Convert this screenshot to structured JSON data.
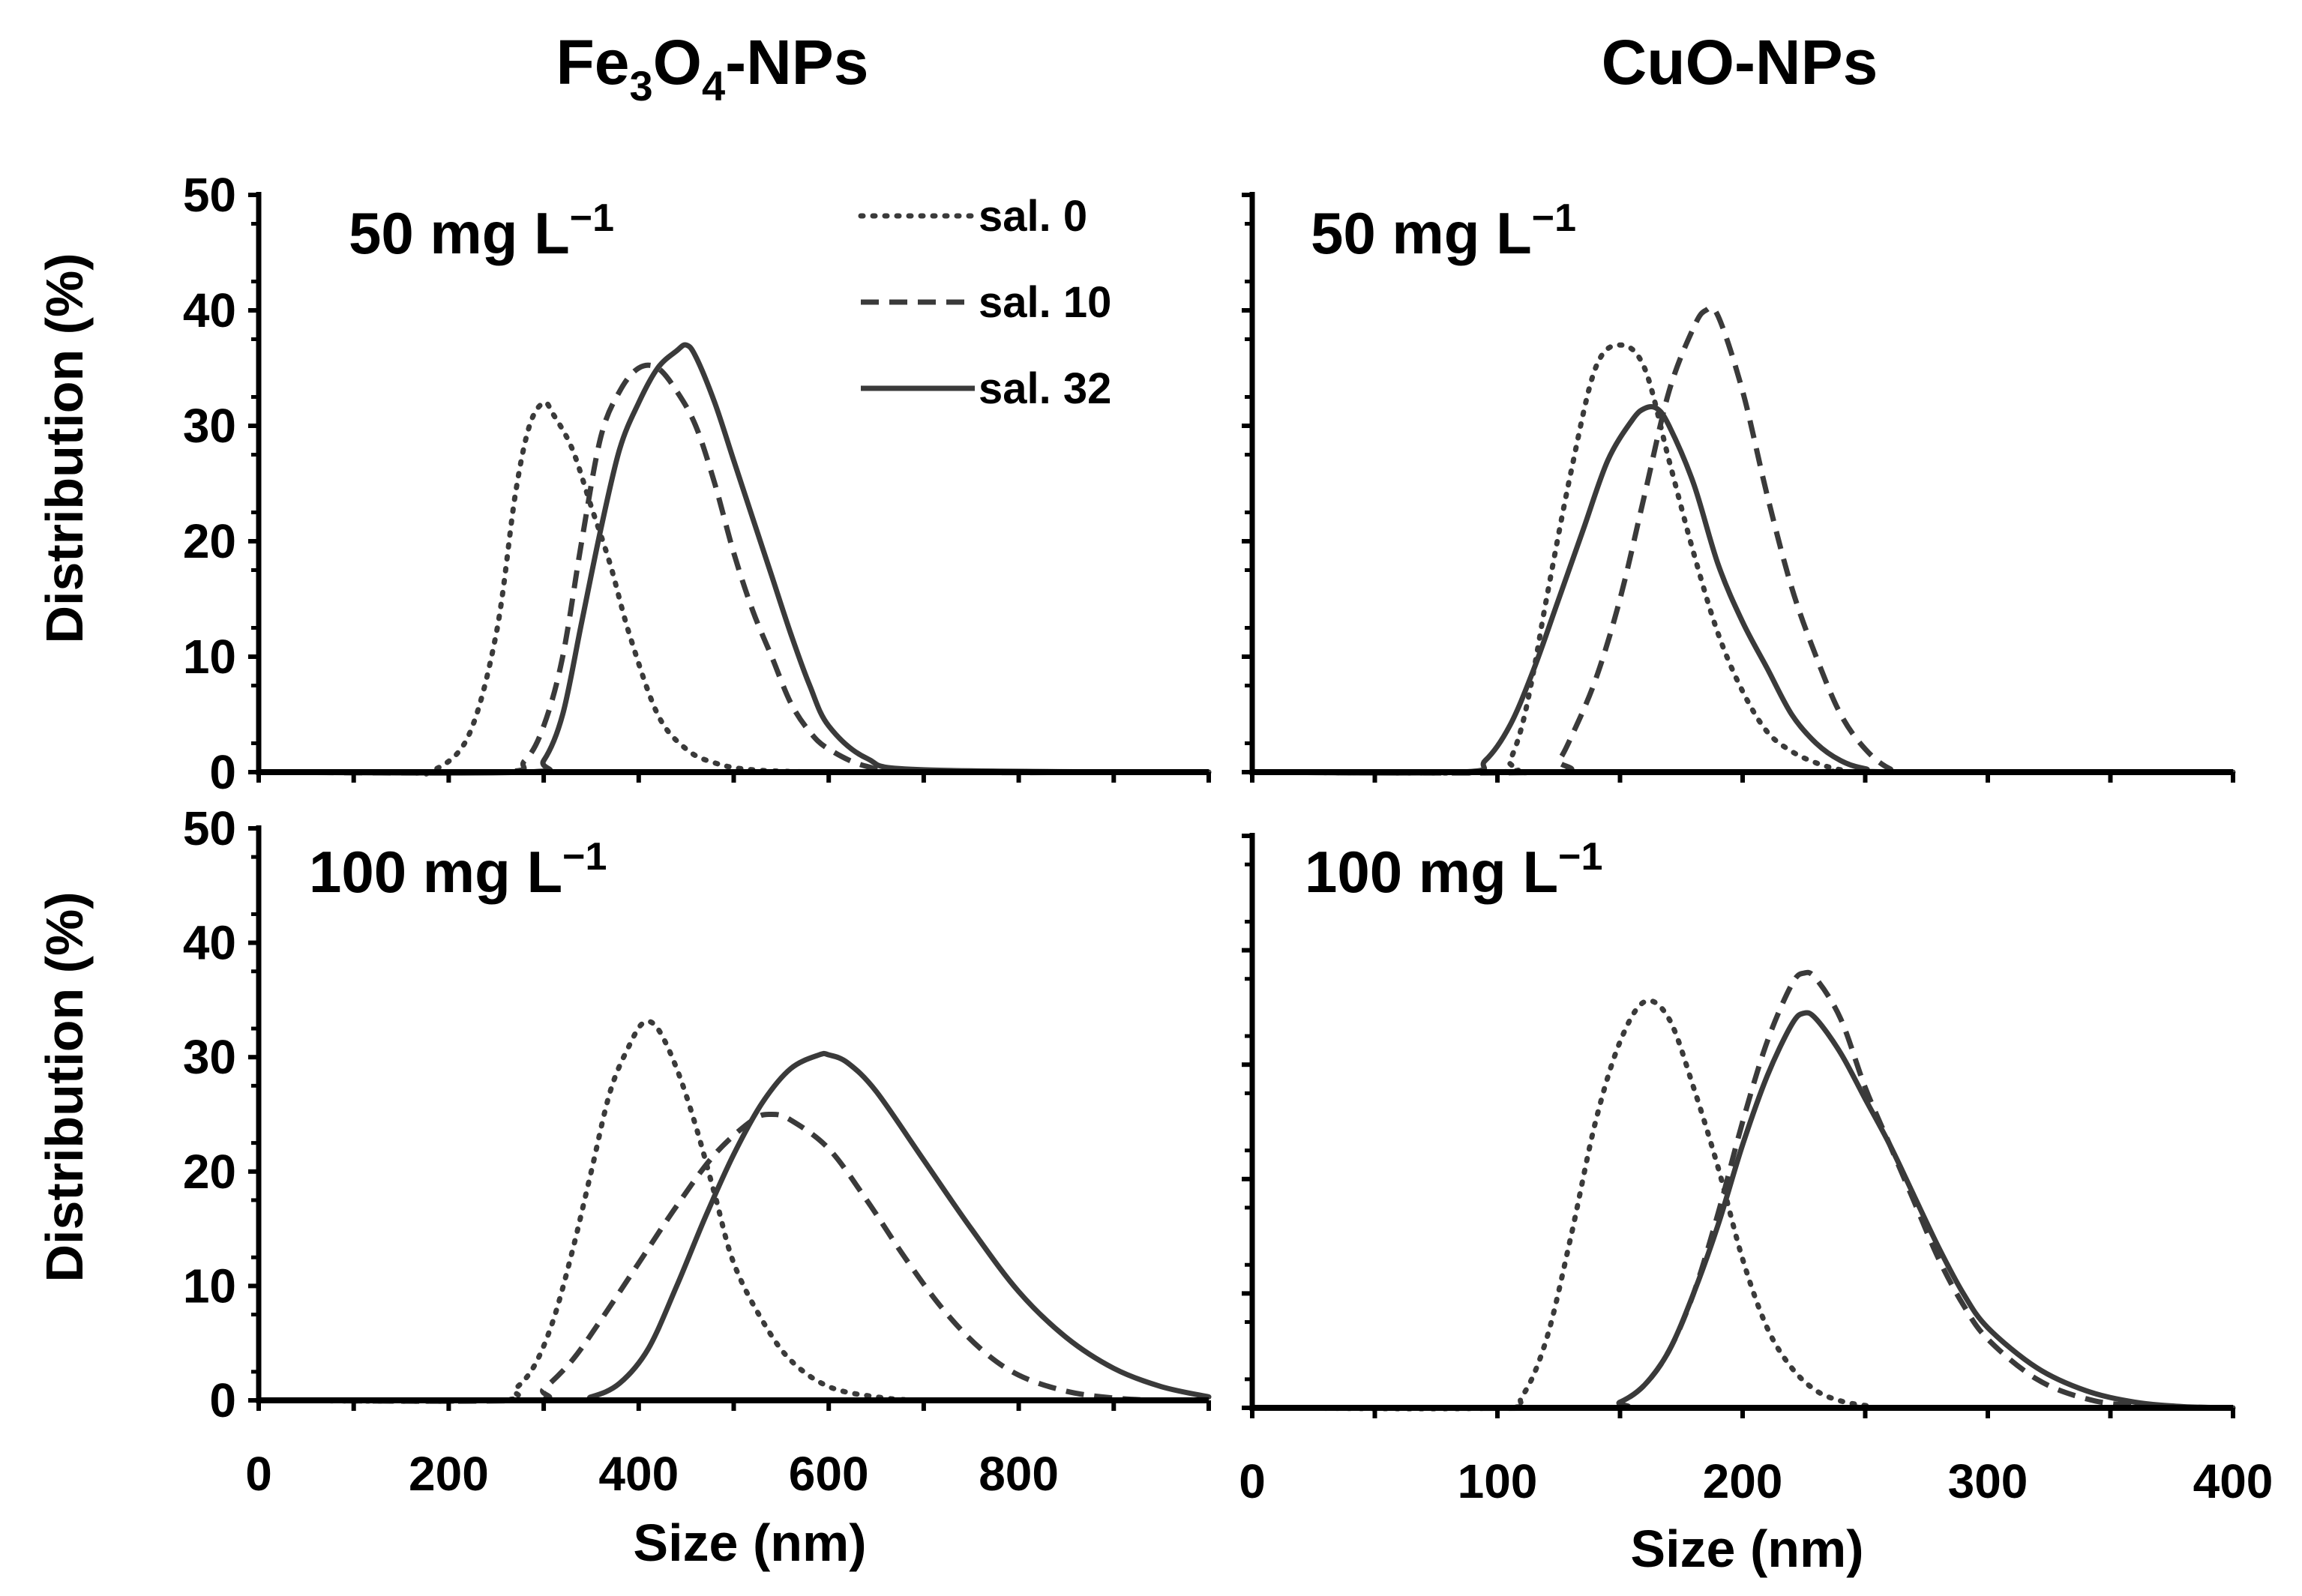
{
  "figure": {
    "col_titles": [
      {
        "base": "Fe",
        "sub1": "3",
        "mid": "O",
        "sub2": "4",
        "tail": "-NPs"
      },
      {
        "base": "CuO-NPs",
        "sub1": "",
        "mid": "",
        "sub2": "",
        "tail": ""
      }
    ],
    "ylabel": "Distribution (%)",
    "xlabel": "Size (nm)",
    "legend": [
      "sal. 0",
      "sal. 10",
      "sal. 32"
    ],
    "colors": {
      "line": "#3a3a3a",
      "axis": "#000000",
      "text": "#000000"
    }
  },
  "chart_data": [
    {
      "type": "line",
      "panel": "Fe3O4-NPs 50 mg L-1",
      "annotation": {
        "text": "50 mg L",
        "sup": "−1"
      },
      "xlim": [
        0,
        1000
      ],
      "ylim": [
        0,
        50
      ],
      "xticks": [
        0,
        200,
        400,
        600,
        800
      ],
      "yticks": [
        0,
        10,
        20,
        30,
        40,
        50
      ],
      "series": [
        {
          "name": "sal. 0",
          "style": "dotted",
          "x": [
            0,
            150,
            180,
            220,
            250,
            270,
            285,
            300,
            310,
            330,
            350,
            370,
            390,
            420,
            450,
            480,
            520,
            600,
            700,
            1000
          ],
          "y": [
            0,
            0,
            0,
            3,
            12,
            24,
            30,
            32,
            31,
            28,
            23,
            18,
            12,
            5,
            2,
            0.8,
            0.2,
            0,
            0,
            0
          ]
        },
        {
          "name": "sal. 10",
          "style": "dashed",
          "x": [
            0,
            250,
            280,
            300,
            320,
            340,
            360,
            380,
            400,
            420,
            440,
            460,
            480,
            500,
            520,
            540,
            560,
            580,
            600,
            640,
            700,
            1000
          ],
          "y": [
            0,
            0,
            1,
            4,
            10,
            20,
            29,
            33,
            35,
            35,
            33,
            30,
            25,
            19,
            14,
            10,
            6,
            3.5,
            2,
            0.5,
            0,
            0
          ]
        },
        {
          "name": "sal. 32",
          "style": "solid",
          "x": [
            0,
            280,
            300,
            320,
            340,
            360,
            380,
            400,
            420,
            440,
            450,
            460,
            480,
            500,
            520,
            540,
            560,
            580,
            600,
            640,
            700,
            1000
          ],
          "y": [
            0,
            0,
            1,
            5,
            13,
            21,
            28,
            32,
            35,
            36.5,
            37,
            36,
            32,
            27,
            22,
            17,
            12,
            7.5,
            4,
            1.2,
            0.2,
            0
          ]
        }
      ]
    },
    {
      "type": "line",
      "panel": "CuO-NPs 50 mg L-1",
      "annotation": {
        "text": "50 mg L",
        "sup": "−1"
      },
      "xlim": [
        0,
        400
      ],
      "ylim": [
        0,
        50
      ],
      "xticks": [
        0,
        100,
        200,
        300,
        400
      ],
      "yticks": [
        0,
        10,
        20,
        30,
        40,
        50
      ],
      "series": [
        {
          "name": "sal. 0",
          "style": "dotted",
          "x": [
            0,
            100,
            105,
            110,
            115,
            120,
            130,
            140,
            150,
            160,
            170,
            180,
            190,
            200,
            210,
            220,
            230,
            240,
            250,
            400
          ],
          "y": [
            0,
            0,
            1,
            4,
            9,
            15,
            26,
            35,
            37,
            35,
            27,
            19,
            12,
            7,
            3.5,
            1.8,
            0.8,
            0.2,
            0,
            0
          ]
        },
        {
          "name": "sal. 10",
          "style": "dashed",
          "x": [
            0,
            120,
            125,
            130,
            140,
            150,
            160,
            170,
            180,
            185,
            190,
            200,
            210,
            220,
            230,
            240,
            250,
            260,
            270,
            400
          ],
          "y": [
            0,
            0,
            1,
            3,
            8,
            15,
            24,
            33,
            38.5,
            40,
            39.5,
            33,
            24,
            16,
            10,
            5,
            2,
            0.3,
            0,
            0
          ]
        },
        {
          "name": "sal. 32",
          "style": "solid",
          "x": [
            0,
            85,
            95,
            105,
            115,
            125,
            135,
            145,
            155,
            160,
            165,
            170,
            180,
            190,
            200,
            210,
            220,
            230,
            240,
            250,
            265,
            400
          ],
          "y": [
            0,
            0,
            1,
            4,
            9,
            15,
            21,
            27,
            30.5,
            31.5,
            31.5,
            30,
            25,
            18,
            13,
            9,
            5,
            2.5,
            1,
            0.3,
            0,
            0
          ]
        }
      ]
    },
    {
      "type": "line",
      "panel": "Fe3O4-NPs 100 mg L-1",
      "annotation": {
        "text": "100 mg L",
        "sup": "−1"
      },
      "xlim": [
        0,
        1000
      ],
      "ylim": [
        0,
        50
      ],
      "xticks": [
        0,
        200,
        400,
        600,
        800
      ],
      "yticks": [
        0,
        10,
        20,
        30,
        40,
        50
      ],
      "series": [
        {
          "name": "sal. 0",
          "style": "dotted",
          "x": [
            0,
            250,
            270,
            290,
            310,
            330,
            350,
            370,
            390,
            405,
            420,
            440,
            460,
            480,
            500,
            530,
            560,
            600,
            650,
            700,
            800,
            1000
          ],
          "y": [
            0,
            0,
            1,
            3,
            7,
            13,
            20,
            27,
            31,
            33,
            32.5,
            29,
            24,
            18,
            12,
            7,
            3.5,
            1.2,
            0.3,
            0,
            0,
            0
          ]
        },
        {
          "name": "sal. 10",
          "style": "dashed",
          "x": [
            0,
            280,
            300,
            330,
            360,
            400,
            440,
            480,
            520,
            540,
            560,
            600,
            640,
            680,
            720,
            760,
            800,
            850,
            900,
            950,
            1000
          ],
          "y": [
            0,
            0,
            1,
            3.5,
            7,
            12,
            17,
            21.5,
            24.5,
            25,
            24.5,
            22,
            17.5,
            12.5,
            8,
            4.5,
            2.2,
            0.8,
            0.2,
            0,
            0
          ]
        },
        {
          "name": "sal. 32",
          "style": "solid",
          "x": [
            0,
            320,
            350,
            380,
            410,
            440,
            470,
            500,
            530,
            560,
            590,
            600,
            620,
            650,
            700,
            750,
            800,
            850,
            900,
            950,
            1000
          ],
          "y": [
            0,
            0,
            0.3,
            1.5,
            4.5,
            10,
            16,
            21.5,
            26,
            29,
            30.2,
            30.2,
            29.5,
            27,
            21,
            15,
            9.5,
            5.5,
            2.8,
            1.2,
            0.3
          ]
        }
      ]
    },
    {
      "type": "line",
      "panel": "CuO-NPs 100 mg L-1",
      "annotation": {
        "text": "100 mg L",
        "sup": "−1"
      },
      "xlim": [
        0,
        400
      ],
      "ylim": [
        0,
        50
      ],
      "xticks": [
        0,
        100,
        200,
        300,
        400
      ],
      "yticks": [
        0,
        10,
        20,
        30,
        40,
        50
      ],
      "series": [
        {
          "name": "sal. 0",
          "style": "dotted",
          "x": [
            0,
            100,
            110,
            120,
            130,
            140,
            150,
            160,
            170,
            180,
            190,
            200,
            210,
            220,
            230,
            240,
            250,
            260,
            400
          ],
          "y": [
            0,
            0,
            1,
            6,
            15,
            25,
            32,
            35.5,
            34,
            28,
            21,
            13,
            7,
            3.5,
            1.5,
            0.6,
            0.2,
            0,
            0
          ]
        },
        {
          "name": "sal. 10",
          "style": "dashed",
          "x": [
            0,
            140,
            150,
            160,
            170,
            180,
            190,
            200,
            210,
            220,
            225,
            230,
            240,
            250,
            260,
            270,
            280,
            290,
            300,
            320,
            340,
            360,
            400
          ],
          "y": [
            0,
            0,
            0.5,
            2,
            5,
            10,
            17,
            25,
            32,
            37,
            38,
            37.5,
            34,
            28,
            23,
            18,
            13,
            9,
            6,
            2.5,
            0.8,
            0.2,
            0
          ]
        },
        {
          "name": "sal. 32",
          "style": "solid",
          "x": [
            0,
            140,
            150,
            160,
            170,
            180,
            190,
            200,
            210,
            220,
            225,
            230,
            240,
            250,
            260,
            270,
            280,
            290,
            300,
            320,
            340,
            360,
            380,
            400
          ],
          "y": [
            0,
            0,
            0.5,
            2,
            5,
            10,
            16,
            23,
            29,
            33.5,
            34.5,
            34,
            31,
            27,
            23,
            18.5,
            14,
            10,
            7,
            3.5,
            1.5,
            0.5,
            0.1,
            0
          ]
        }
      ]
    }
  ]
}
